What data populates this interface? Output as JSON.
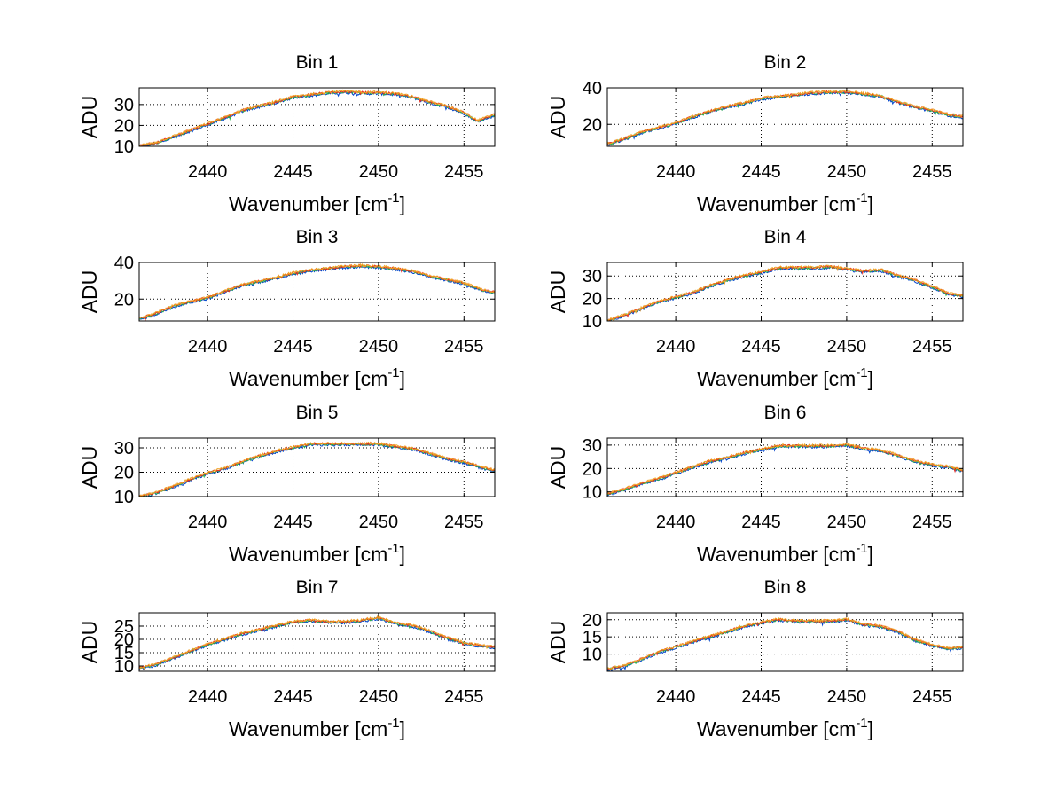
{
  "chart_data": [
    {
      "type": "line",
      "title": "Bin 1",
      "xlabel": "Wavenumber",
      "xlabel_unit": "cm",
      "xlabel_exp": "-1",
      "ylabel": "ADU",
      "xlim": [
        2436,
        2456.8
      ],
      "ylim": [
        10,
        38
      ],
      "xticks": [
        2440,
        2445,
        2450,
        2455
      ],
      "yticks": [
        10,
        20,
        30
      ],
      "grid": true,
      "series_colors": [
        "#0044cc",
        "#2ab04a",
        "#e83020",
        "#f0a020"
      ],
      "profile": {
        "x": [
          2436,
          2437,
          2438,
          2439,
          2440,
          2441,
          2442,
          2443,
          2444,
          2445,
          2446,
          2447,
          2448,
          2449,
          2450,
          2451,
          2452,
          2453,
          2454,
          2455,
          2455.8,
          2456.8
        ],
        "y": [
          10,
          11.5,
          14.5,
          17.5,
          20.5,
          23.5,
          27,
          29,
          31,
          33.5,
          34.5,
          35.5,
          36,
          35.5,
          35.5,
          35,
          33.5,
          31,
          29,
          26,
          22,
          25
        ]
      }
    },
    {
      "type": "line",
      "title": "Bin 2",
      "xlabel": "Wavenumber",
      "xlabel_unit": "cm",
      "xlabel_exp": "-1",
      "ylabel": "ADU",
      "xlim": [
        2436,
        2456.8
      ],
      "ylim": [
        8,
        40
      ],
      "xticks": [
        2440,
        2445,
        2450,
        2455
      ],
      "yticks": [
        20,
        40
      ],
      "grid": true,
      "series_colors": [
        "#0044cc",
        "#2ab04a",
        "#e83020",
        "#f0a020"
      ],
      "profile": {
        "x": [
          2436,
          2437,
          2438,
          2439,
          2440,
          2441,
          2442,
          2443,
          2444,
          2445,
          2446,
          2447,
          2448,
          2449,
          2450,
          2451,
          2452,
          2453,
          2454,
          2455,
          2456,
          2456.8
        ],
        "y": [
          9,
          12,
          15.5,
          18,
          20.5,
          24,
          27,
          29.5,
          31.5,
          34,
          35,
          36,
          37,
          37.5,
          37.5,
          36.5,
          35.5,
          32,
          29.5,
          27.5,
          25,
          24
        ]
      }
    },
    {
      "type": "line",
      "title": "Bin 3",
      "xlabel": "Wavenumber",
      "xlabel_unit": "cm",
      "xlabel_exp": "-1",
      "ylabel": "ADU",
      "xlim": [
        2436,
        2456.8
      ],
      "ylim": [
        8,
        40
      ],
      "xticks": [
        2440,
        2445,
        2450,
        2455
      ],
      "yticks": [
        20,
        40
      ],
      "grid": true,
      "series_colors": [
        "#0044cc",
        "#2ab04a",
        "#e83020",
        "#f0a020"
      ],
      "profile": {
        "x": [
          2436,
          2437,
          2438,
          2439,
          2440,
          2441,
          2442,
          2443,
          2444,
          2445,
          2446,
          2447,
          2448,
          2449,
          2450,
          2451,
          2452,
          2453,
          2454,
          2455,
          2456,
          2456.8
        ],
        "y": [
          9,
          12,
          16,
          18.5,
          20.5,
          24,
          27.5,
          29.5,
          31.5,
          34,
          35.5,
          36.5,
          37.5,
          38,
          37.5,
          36.5,
          35,
          32.5,
          30.5,
          28.5,
          25,
          23.5
        ]
      }
    },
    {
      "type": "line",
      "title": "Bin 4",
      "xlabel": "Wavenumber",
      "xlabel_unit": "cm",
      "xlabel_exp": "-1",
      "ylabel": "ADU",
      "xlim": [
        2436,
        2456.8
      ],
      "ylim": [
        10,
        36
      ],
      "xticks": [
        2440,
        2445,
        2450,
        2455
      ],
      "yticks": [
        10,
        20,
        30
      ],
      "grid": true,
      "series_colors": [
        "#0044cc",
        "#2ab04a",
        "#e83020",
        "#f0a020"
      ],
      "profile": {
        "x": [
          2436,
          2437,
          2438,
          2439,
          2440,
          2441,
          2442,
          2443,
          2444,
          2445,
          2446,
          2447,
          2448,
          2449,
          2450,
          2451,
          2452,
          2453,
          2454,
          2455,
          2456,
          2456.8
        ],
        "y": [
          10,
          12.5,
          15.5,
          18.5,
          20.5,
          22.5,
          25.5,
          28,
          30,
          31.5,
          33.5,
          33.5,
          33.5,
          34,
          33,
          32,
          32.5,
          30,
          28,
          25,
          22,
          21
        ]
      }
    },
    {
      "type": "line",
      "title": "Bin 5",
      "xlabel": "Wavenumber",
      "xlabel_unit": "cm",
      "xlabel_exp": "-1",
      "ylabel": "ADU",
      "xlim": [
        2436,
        2456.8
      ],
      "ylim": [
        10,
        34
      ],
      "xticks": [
        2440,
        2445,
        2450,
        2455
      ],
      "yticks": [
        10,
        20,
        30
      ],
      "grid": true,
      "series_colors": [
        "#0044cc",
        "#2ab04a",
        "#e83020",
        "#f0a020"
      ],
      "profile": {
        "x": [
          2436,
          2437,
          2438,
          2439,
          2440,
          2441,
          2442,
          2443,
          2444,
          2445,
          2446,
          2447,
          2448,
          2449,
          2450,
          2451,
          2452,
          2453,
          2454,
          2455,
          2456,
          2456.8
        ],
        "y": [
          10,
          11.5,
          14,
          17,
          19.5,
          21.5,
          24,
          26.5,
          28.5,
          30,
          31.5,
          31.5,
          31.5,
          31.5,
          31.5,
          30.5,
          29.5,
          27.5,
          25.5,
          24,
          22,
          20.5
        ]
      }
    },
    {
      "type": "line",
      "title": "Bin 6",
      "xlabel": "Wavenumber",
      "xlabel_unit": "cm",
      "xlabel_exp": "-1",
      "ylabel": "ADU",
      "xlim": [
        2436,
        2456.8
      ],
      "ylim": [
        8,
        33
      ],
      "xticks": [
        2440,
        2445,
        2450,
        2455
      ],
      "yticks": [
        10,
        20,
        30
      ],
      "grid": true,
      "series_colors": [
        "#0044cc",
        "#2ab04a",
        "#e83020",
        "#f0a020"
      ],
      "profile": {
        "x": [
          2436,
          2437,
          2438,
          2439,
          2440,
          2441,
          2442,
          2443,
          2444,
          2445,
          2446,
          2447,
          2448,
          2449,
          2450,
          2451,
          2452,
          2453,
          2454,
          2455,
          2456,
          2456.8
        ],
        "y": [
          9,
          11,
          13.5,
          15.5,
          18,
          20.5,
          23,
          24.5,
          26.5,
          28,
          29.5,
          29.5,
          29.5,
          29.5,
          30,
          28.5,
          27.5,
          25.5,
          23,
          21.5,
          20.5,
          19
        ]
      }
    },
    {
      "type": "line",
      "title": "Bin 7",
      "xlabel": "Wavenumber",
      "xlabel_unit": "cm",
      "xlabel_exp": "-1",
      "ylabel": "ADU",
      "xlim": [
        2436,
        2456.8
      ],
      "ylim": [
        8,
        30
      ],
      "xticks": [
        2440,
        2445,
        2450,
        2455
      ],
      "yticks": [
        10,
        15,
        20,
        25
      ],
      "grid": true,
      "series_colors": [
        "#0044cc",
        "#2ab04a",
        "#e83020",
        "#f0a020"
      ],
      "profile": {
        "x": [
          2436,
          2437,
          2438,
          2439,
          2440,
          2441,
          2442,
          2443,
          2444,
          2445,
          2446,
          2447,
          2448,
          2449,
          2450,
          2451,
          2452,
          2453,
          2454,
          2455,
          2456,
          2456.8
        ],
        "y": [
          9,
          10.5,
          13,
          15.5,
          18,
          20,
          22,
          23.5,
          25,
          26.5,
          27,
          26.5,
          26.5,
          27,
          28,
          26,
          25,
          23,
          20.5,
          18.5,
          17.5,
          17
        ]
      }
    },
    {
      "type": "line",
      "title": "Bin 8",
      "xlabel": "Wavenumber",
      "xlabel_unit": "cm",
      "xlabel_exp": "-1",
      "ylabel": "ADU",
      "xlim": [
        2436,
        2456.8
      ],
      "ylim": [
        5,
        22
      ],
      "xticks": [
        2440,
        2445,
        2450,
        2455
      ],
      "yticks": [
        10,
        15,
        20
      ],
      "grid": true,
      "series_colors": [
        "#0044cc",
        "#2ab04a",
        "#e83020",
        "#f0a020"
      ],
      "profile": {
        "x": [
          2436,
          2437,
          2438,
          2439,
          2440,
          2441,
          2442,
          2443,
          2444,
          2445,
          2446,
          2447,
          2448,
          2449,
          2450,
          2451,
          2452,
          2453,
          2454,
          2455,
          2456,
          2456.8
        ],
        "y": [
          5.5,
          6.5,
          8.5,
          10.5,
          12,
          13.5,
          15,
          16.5,
          18,
          19,
          20,
          19.5,
          19.5,
          19.5,
          20,
          18.5,
          18,
          16.5,
          14,
          12.5,
          11.5,
          12
        ]
      }
    }
  ]
}
